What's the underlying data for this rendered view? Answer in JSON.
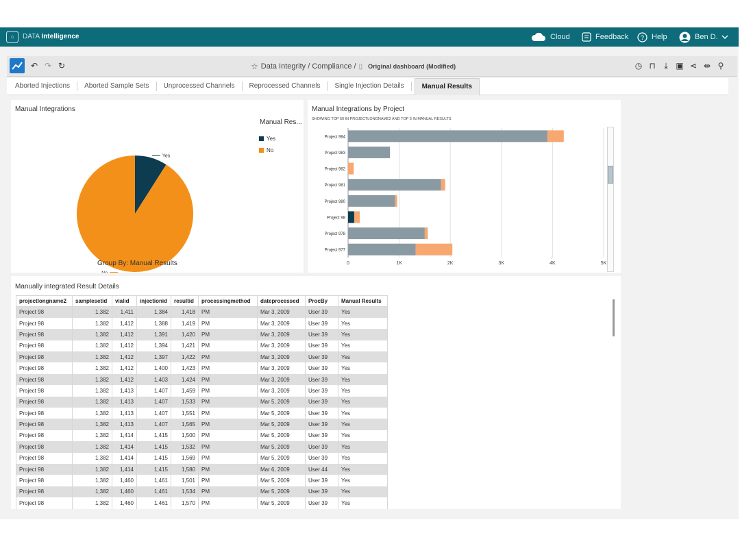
{
  "app": {
    "brand_prefix": "DATA",
    "brand_name": "Intelligence"
  },
  "topbar": {
    "cloud": "Cloud",
    "feedback": "Feedback",
    "help": "Help",
    "user": "Ben D."
  },
  "toolbar": {
    "breadcrumb": "Data Integrity / Compliance /",
    "dashboard": "Original dashboard (Modified)"
  },
  "tabs": [
    "Aborted Injections",
    "Aborted Sample Sets",
    "Unprocessed Channels",
    "Reprocessed Channels",
    "Single Injection Details",
    "Manual Results"
  ],
  "active_tab": "Manual Results",
  "pie_panel": {
    "title": "Manual Integrations",
    "legend_title": "Manual Res...",
    "group_by": "Group By: Manual Results"
  },
  "bar_panel": {
    "title": "Manual Integrations by Project",
    "subtitle": "SHOWING TOP 50 IN PROJECTLONGNAME2 AND TOP 3 IN MANUAL RESULTS"
  },
  "table_panel": {
    "title": "Manually integrated Result Details"
  },
  "colors": {
    "yes": "#0d3b4f",
    "no": "#f39019",
    "bar_gray": "#8a9aa3",
    "bar_orange": "#f7a870",
    "topbar": "#0d6b7a"
  },
  "chart_data": [
    {
      "type": "pie",
      "title": "Manual Integrations",
      "legend_title": "Manual Res...",
      "categories": [
        "Yes",
        "No"
      ],
      "values": [
        9,
        91
      ],
      "colors": [
        "#0d3b4f",
        "#f39019"
      ]
    },
    {
      "type": "bar",
      "orientation": "horizontal",
      "stacked": true,
      "title": "Manual Integrations by Project",
      "categories": [
        "Project 984",
        "Project 983",
        "Project 982",
        "Project 981",
        "Project 980",
        "Project 98",
        "Project 978",
        "Project 977"
      ],
      "series": [
        {
          "values": [
            0,
            0,
            0,
            0,
            0,
            120,
            0,
            0
          ],
          "color": "#0d3b4f"
        },
        {
          "values": [
            3900,
            820,
            0,
            1820,
            920,
            0,
            1500,
            1320
          ],
          "color": "#8a9aa3"
        },
        {
          "values": [
            320,
            0,
            110,
            80,
            40,
            110,
            60,
            720
          ],
          "color": "#f7a870"
        }
      ],
      "xlim": [
        0,
        5000
      ],
      "xticks": [
        "0",
        "1K",
        "2K",
        "3K",
        "4K",
        "5K"
      ],
      "grid": true
    }
  ],
  "table": {
    "columns": [
      "projectlongname2",
      "samplesetid",
      "vialid",
      "injectionid",
      "resultid",
      "processingmethod",
      "dateprocessed",
      "ProcBy",
      "Manual Results"
    ],
    "rows": [
      [
        "Project 98",
        "1,382",
        "1,411",
        "1,384",
        "1,418",
        "PM",
        "Mar 3, 2009",
        "User 39",
        "Yes"
      ],
      [
        "Project 98",
        "1,382",
        "1,412",
        "1,388",
        "1,419",
        "PM",
        "Mar 3, 2009",
        "User 39",
        "Yes"
      ],
      [
        "Project 98",
        "1,382",
        "1,412",
        "1,391",
        "1,420",
        "PM",
        "Mar 3, 2009",
        "User 39",
        "Yes"
      ],
      [
        "Project 98",
        "1,382",
        "1,412",
        "1,394",
        "1,421",
        "PM",
        "Mar 3, 2009",
        "User 39",
        "Yes"
      ],
      [
        "Project 98",
        "1,382",
        "1,412",
        "1,397",
        "1,422",
        "PM",
        "Mar 3, 2009",
        "User 39",
        "Yes"
      ],
      [
        "Project 98",
        "1,382",
        "1,412",
        "1,400",
        "1,423",
        "PM",
        "Mar 3, 2009",
        "User 39",
        "Yes"
      ],
      [
        "Project 98",
        "1,382",
        "1,412",
        "1,403",
        "1,424",
        "PM",
        "Mar 3, 2009",
        "User 39",
        "Yes"
      ],
      [
        "Project 98",
        "1,382",
        "1,413",
        "1,407",
        "1,459",
        "PM",
        "Mar 3, 2009",
        "User 39",
        "Yes"
      ],
      [
        "Project 98",
        "1,382",
        "1,413",
        "1,407",
        "1,533",
        "PM",
        "Mar 5, 2009",
        "User 39",
        "Yes"
      ],
      [
        "Project 98",
        "1,382",
        "1,413",
        "1,407",
        "1,551",
        "PM",
        "Mar 5, 2009",
        "User 39",
        "Yes"
      ],
      [
        "Project 98",
        "1,382",
        "1,413",
        "1,407",
        "1,565",
        "PM",
        "Mar 5, 2009",
        "User 39",
        "Yes"
      ],
      [
        "Project 98",
        "1,382",
        "1,414",
        "1,415",
        "1,500",
        "PM",
        "Mar 5, 2009",
        "User 39",
        "Yes"
      ],
      [
        "Project 98",
        "1,382",
        "1,414",
        "1,415",
        "1,532",
        "PM",
        "Mar 5, 2009",
        "User 39",
        "Yes"
      ],
      [
        "Project 98",
        "1,382",
        "1,414",
        "1,415",
        "1,569",
        "PM",
        "Mar 5, 2009",
        "User 39",
        "Yes"
      ],
      [
        "Project 98",
        "1,382",
        "1,414",
        "1,415",
        "1,580",
        "PM",
        "Mar 6, 2009",
        "User 44",
        "Yes"
      ],
      [
        "Project 98",
        "1,382",
        "1,460",
        "1,461",
        "1,501",
        "PM",
        "Mar 5, 2009",
        "User 39",
        "Yes"
      ],
      [
        "Project 98",
        "1,382",
        "1,460",
        "1,461",
        "1,534",
        "PM",
        "Mar 5, 2009",
        "User 39",
        "Yes"
      ],
      [
        "Project 98",
        "1,382",
        "1,460",
        "1,461",
        "1,570",
        "PM",
        "Mar 5, 2009",
        "User 39",
        "Yes"
      ]
    ]
  }
}
